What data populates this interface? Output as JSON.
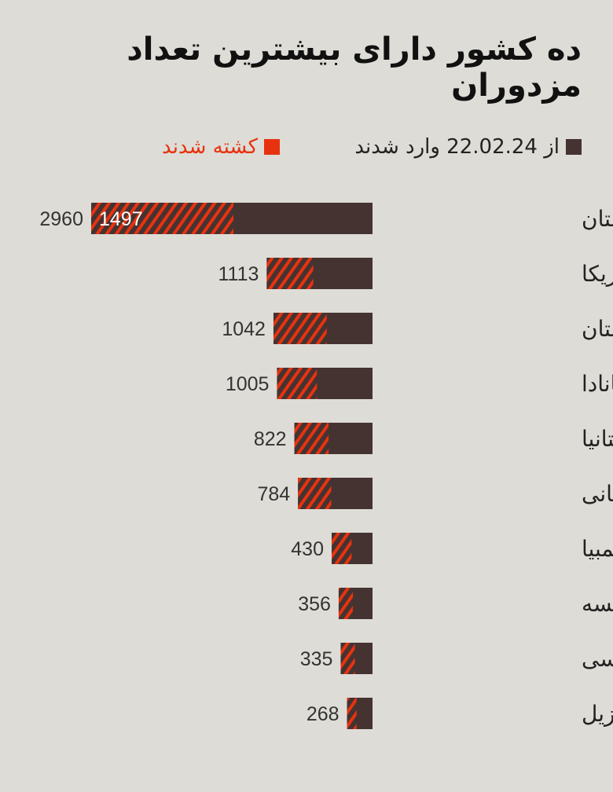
{
  "title": "ده کشور دارای بیشترین تعداد مزدوران",
  "legend": {
    "entered": "از 22.02.24 وارد شدند",
    "killed": "کشته شدند",
    "colors": {
      "entered": "#453331",
      "killed": "#e8320f",
      "background": "#dddcd6"
    }
  },
  "chart_data": {
    "type": "bar",
    "orientation": "horizontal",
    "categories": [
      "لهستان",
      "آمریکا",
      "گرجستان",
      "کانادا",
      "بریتانیا",
      "رومانی",
      "کلمبیا",
      "فرانسه",
      "کرواسی",
      "برزیل"
    ],
    "series": [
      {
        "name": "از 22.02.24 وارد شدند",
        "values": [
          2960,
          1113,
          1042,
          1005,
          822,
          784,
          430,
          356,
          335,
          268
        ]
      },
      {
        "name": "کشته شدند",
        "values": [
          1497,
          490,
          560,
          420,
          360,
          350,
          210,
          150,
          150,
          100
        ]
      }
    ],
    "value_labels": [
      "2960",
      "1113",
      "1042",
      "1005",
      "822",
      "784",
      "430",
      "356",
      "335",
      "268"
    ],
    "inner_label": "1497",
    "xlim": [
      0,
      2960
    ]
  }
}
